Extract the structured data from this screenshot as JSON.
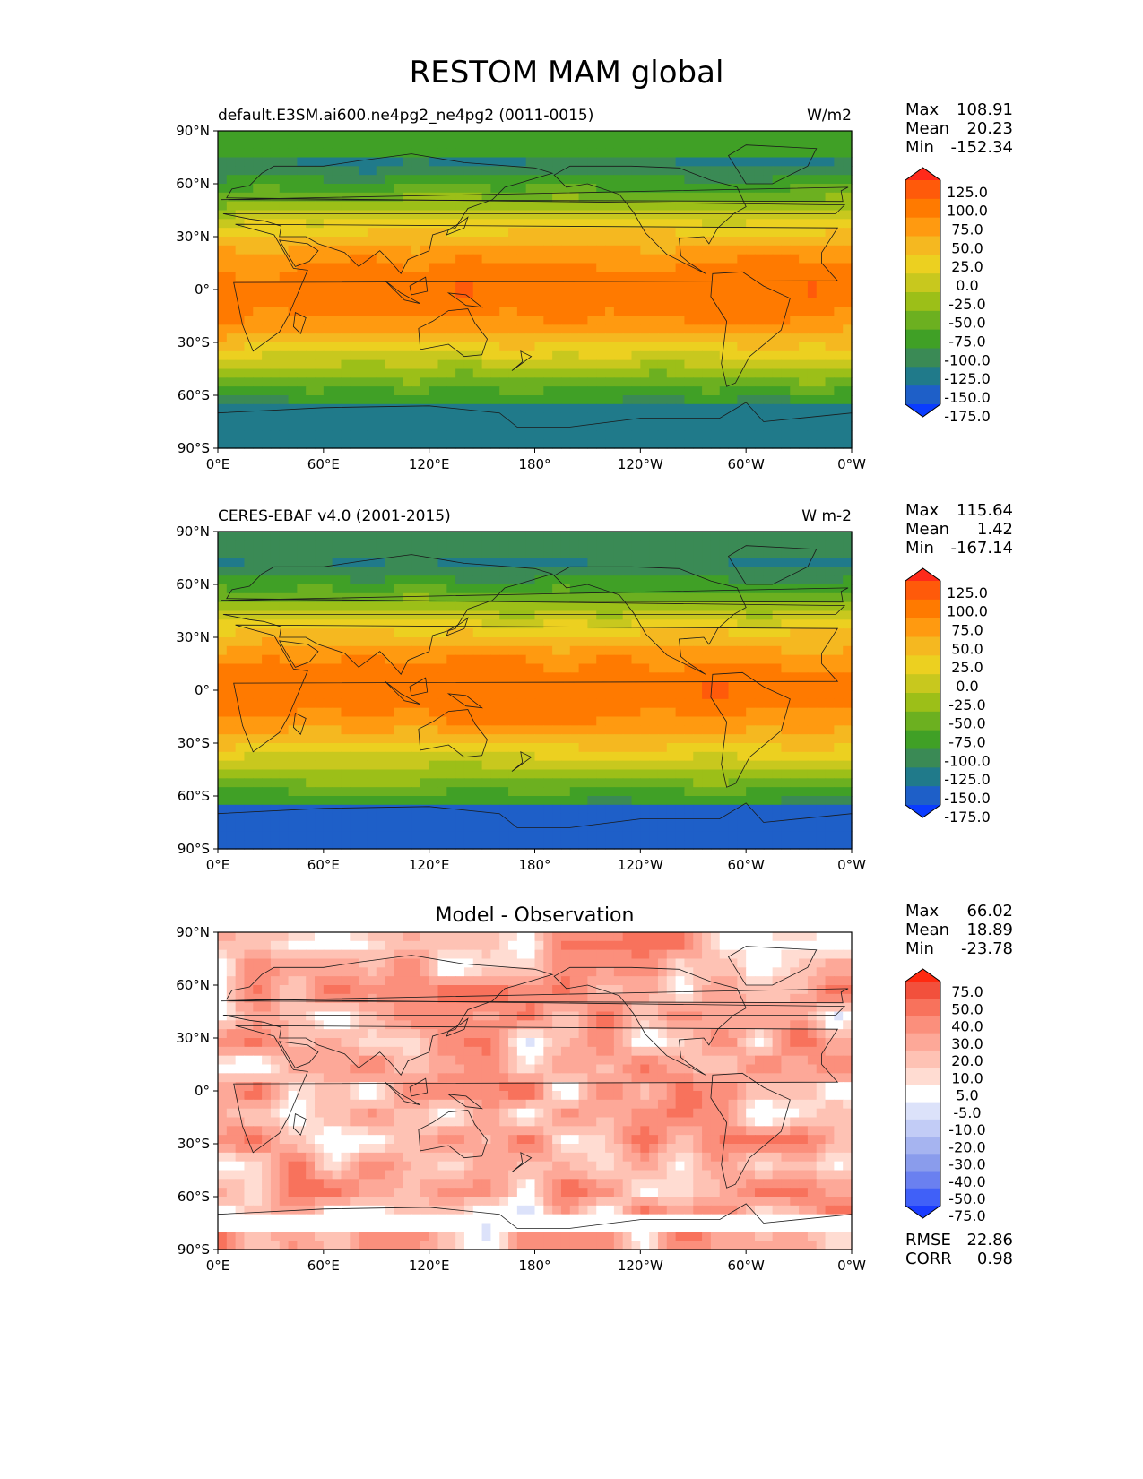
{
  "title": "RESTOM MAM global",
  "chart_data": [
    {
      "type": "heatmap",
      "title": "default.E3SM.ai600.ne4pg2_ne4pg2 (0011-0015)",
      "units": "W/m2",
      "stats": {
        "max_label": "Max",
        "max": "108.91",
        "mean_label": "Mean",
        "mean": "20.23",
        "min_label": "Min",
        "min": "-152.34"
      },
      "x_ticks": [
        "0°E",
        "60°E",
        "120°E",
        "180°",
        "120°W",
        "60°W",
        "0°W"
      ],
      "y_ticks": [
        "90°N",
        "60°N",
        "30°N",
        "0°",
        "30°S",
        "60°S",
        "90°S"
      ],
      "colorbar": {
        "levels": [
          "125.0",
          "100.0",
          "75.0",
          "50.0",
          "25.0",
          "0.0",
          "-25.0",
          "-50.0",
          "-75.0",
          "-100.0",
          "-125.0",
          "-150.0",
          "-175.0"
        ],
        "colors": [
          "#ff2a1a",
          "#ff5a0a",
          "#ff7a00",
          "#ff9a10",
          "#f5b820",
          "#ecd020",
          "#c8c81e",
          "#9cbf18",
          "#6cb020",
          "#40a026",
          "#3a8a55",
          "#207a8a",
          "#1e5fc8",
          "#0a3cff"
        ]
      }
    },
    {
      "type": "heatmap",
      "title": "CERES-EBAF v4.0 (2001-2015)",
      "units": "W m-2",
      "stats": {
        "max_label": "Max",
        "max": "115.64",
        "mean_label": "Mean",
        "mean": "1.42",
        "min_label": "Min",
        "min": "-167.14"
      },
      "x_ticks": [
        "0°E",
        "60°E",
        "120°E",
        "180°",
        "120°W",
        "60°W",
        "0°W"
      ],
      "y_ticks": [
        "90°N",
        "60°N",
        "30°N",
        "0°",
        "30°S",
        "60°S",
        "90°S"
      ],
      "colorbar": {
        "levels": [
          "125.0",
          "100.0",
          "75.0",
          "50.0",
          "25.0",
          "0.0",
          "-25.0",
          "-50.0",
          "-75.0",
          "-100.0",
          "-125.0",
          "-150.0",
          "-175.0"
        ],
        "colors": [
          "#ff2a1a",
          "#ff5a0a",
          "#ff7a00",
          "#ff9a10",
          "#f5b820",
          "#ecd020",
          "#c8c81e",
          "#9cbf18",
          "#6cb020",
          "#40a026",
          "#3a8a55",
          "#207a8a",
          "#1e5fc8",
          "#0a3cff"
        ]
      }
    },
    {
      "type": "heatmap",
      "title": "Model - Observation",
      "stats": {
        "max_label": "Max",
        "max": "66.02",
        "mean_label": "Mean",
        "mean": "18.89",
        "min_label": "Min",
        "min": "-23.78"
      },
      "x_ticks": [
        "0°E",
        "60°E",
        "120°E",
        "180°",
        "120°W",
        "60°W",
        "0°W"
      ],
      "y_ticks": [
        "90°N",
        "60°N",
        "30°N",
        "0°",
        "30°S",
        "60°S",
        "90°S"
      ],
      "colorbar": {
        "levels": [
          "75.0",
          "50.0",
          "40.0",
          "30.0",
          "20.0",
          "10.0",
          "5.0",
          "-5.0",
          "-10.0",
          "-20.0",
          "-30.0",
          "-40.0",
          "-50.0",
          "-75.0"
        ],
        "colors": [
          "#ff2a10",
          "#f2503c",
          "#f8725c",
          "#fb8f7c",
          "#fda898",
          "#fec2b4",
          "#ffdcd2",
          "#ffffff",
          "#dce2fa",
          "#c2ccf6",
          "#a6b4f0",
          "#8a9cec",
          "#6a80f0",
          "#4060f8",
          "#1a3cff"
        ]
      },
      "rmse_label": "RMSE",
      "rmse": "22.86",
      "corr_label": "CORR",
      "corr": "0.98"
    }
  ]
}
